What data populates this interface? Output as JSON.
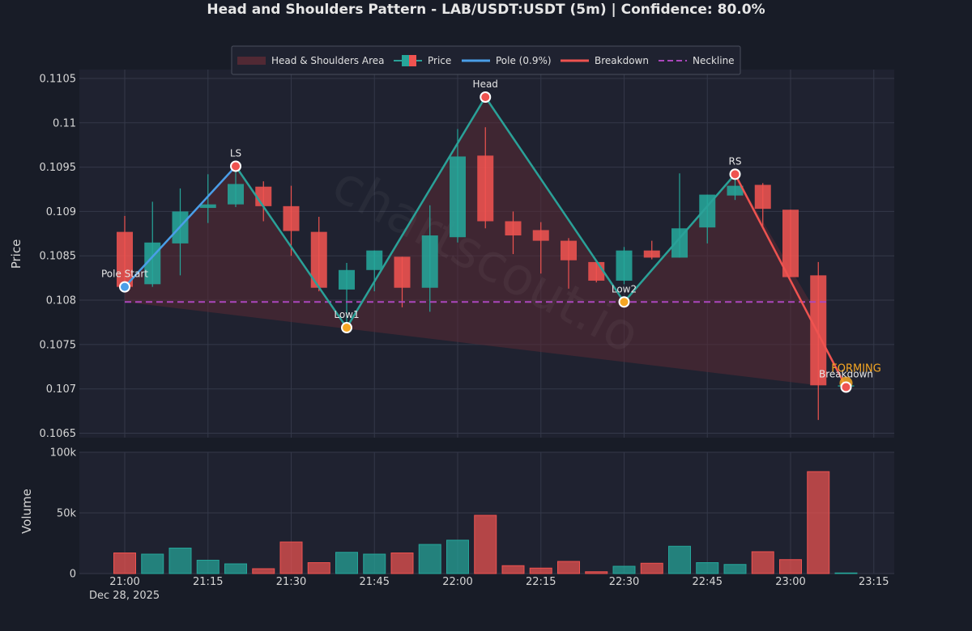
{
  "title": "Head and Shoulders Pattern - LAB/USDT:USDT (5m) | Confidence: 80.0%",
  "watermark": "chartscout.io",
  "legend": {
    "area": "Head & Shoulders Area",
    "price": "Price",
    "pole": "Pole (0.9%)",
    "breakdown": "Breakdown",
    "neckline": "Neckline"
  },
  "status_label": "FORMING",
  "colors": {
    "background": "#181c27",
    "panel": "#1f2230",
    "grid": "#343849",
    "up": "#26a69a",
    "down": "#ef5350",
    "pattern_line": "#2aa198",
    "pole": "#4a9ee8",
    "breakdown": "#ef5350",
    "neckline": "#ab47bc",
    "area": "#5a2a35",
    "low_marker": "#f5a623",
    "forming": "#f5a623"
  },
  "chart_data": {
    "type": "candlestick",
    "title": "Head and Shoulders Pattern - LAB/USDT:USDT (5m) | Confidence: 80.0%",
    "ylabel": "Price",
    "volume_ylabel": "Volume",
    "ylim": [
      0.10645,
      0.1106
    ],
    "volume_ylim": [
      0,
      100000
    ],
    "grid": true,
    "legend_position": "top-center",
    "x_start_label": "Dec 28, 2025",
    "x_ticks": [
      "21:00",
      "21:15",
      "21:30",
      "21:45",
      "22:00",
      "22:15",
      "22:30",
      "22:45",
      "23:00",
      "23:15"
    ],
    "y_ticks": [
      "0.1065",
      "0.107",
      "0.1075",
      "0.108",
      "0.1085",
      "0.109",
      "0.1095",
      "0.11",
      "0.1105"
    ],
    "volume_ticks": [
      "0",
      "50k",
      "100k"
    ],
    "candles": [
      {
        "t": "21:00",
        "o": 0.10877,
        "h": 0.10895,
        "l": 0.10812,
        "c": 0.10815,
        "v": 17000
      },
      {
        "t": "21:05",
        "o": 0.10818,
        "h": 0.10911,
        "l": 0.10815,
        "c": 0.10865,
        "v": 16000
      },
      {
        "t": "21:10",
        "o": 0.10864,
        "h": 0.10926,
        "l": 0.10828,
        "c": 0.109,
        "v": 21000
      },
      {
        "t": "21:15",
        "o": 0.10904,
        "h": 0.10942,
        "l": 0.10887,
        "c": 0.10908,
        "v": 11000
      },
      {
        "t": "21:20",
        "o": 0.10908,
        "h": 0.1095,
        "l": 0.10905,
        "c": 0.10931,
        "v": 8000
      },
      {
        "t": "21:25",
        "o": 0.10928,
        "h": 0.10934,
        "l": 0.10889,
        "c": 0.10906,
        "v": 4000
      },
      {
        "t": "21:30",
        "o": 0.10906,
        "h": 0.10929,
        "l": 0.1085,
        "c": 0.10878,
        "v": 26000
      },
      {
        "t": "21:35",
        "o": 0.10877,
        "h": 0.10894,
        "l": 0.1081,
        "c": 0.10814,
        "v": 9000
      },
      {
        "t": "21:40",
        "o": 0.10812,
        "h": 0.10842,
        "l": 0.10769,
        "c": 0.10834,
        "v": 17500
      },
      {
        "t": "21:45",
        "o": 0.10834,
        "h": 0.10856,
        "l": 0.1081,
        "c": 0.10856,
        "v": 16000
      },
      {
        "t": "21:50",
        "o": 0.10849,
        "h": 0.10849,
        "l": 0.10792,
        "c": 0.10814,
        "v": 17000
      },
      {
        "t": "21:55",
        "o": 0.10814,
        "h": 0.10907,
        "l": 0.10787,
        "c": 0.10873,
        "v": 24000
      },
      {
        "t": "22:00",
        "o": 0.10871,
        "h": 0.10993,
        "l": 0.10865,
        "c": 0.10962,
        "v": 27500
      },
      {
        "t": "22:05",
        "o": 0.10963,
        "h": 0.10995,
        "l": 0.10881,
        "c": 0.10889,
        "v": 48000
      },
      {
        "t": "22:10",
        "o": 0.10889,
        "h": 0.109,
        "l": 0.10852,
        "c": 0.10873,
        "v": 6500
      },
      {
        "t": "22:15",
        "o": 0.10879,
        "h": 0.10888,
        "l": 0.1083,
        "c": 0.10867,
        "v": 4500
      },
      {
        "t": "22:20",
        "o": 0.10867,
        "h": 0.1087,
        "l": 0.10813,
        "c": 0.10845,
        "v": 10000
      },
      {
        "t": "22:25",
        "o": 0.10843,
        "h": 0.10844,
        "l": 0.1082,
        "c": 0.10822,
        "v": 1500
      },
      {
        "t": "22:30",
        "o": 0.10822,
        "h": 0.1086,
        "l": 0.10818,
        "c": 0.10856,
        "v": 6000
      },
      {
        "t": "22:35",
        "o": 0.10856,
        "h": 0.10867,
        "l": 0.10846,
        "c": 0.10848,
        "v": 8500
      },
      {
        "t": "22:40",
        "o": 0.10848,
        "h": 0.10943,
        "l": 0.10848,
        "c": 0.10881,
        "v": 22500
      },
      {
        "t": "22:45",
        "o": 0.10882,
        "h": 0.10919,
        "l": 0.10864,
        "c": 0.10919,
        "v": 9000
      },
      {
        "t": "22:50",
        "o": 0.10918,
        "h": 0.10946,
        "l": 0.10913,
        "c": 0.10929,
        "v": 7500
      },
      {
        "t": "22:55",
        "o": 0.1093,
        "h": 0.10932,
        "l": 0.10883,
        "c": 0.10903,
        "v": 18000
      },
      {
        "t": "23:00",
        "o": 0.10902,
        "h": 0.10902,
        "l": 0.10826,
        "c": 0.10826,
        "v": 11500
      },
      {
        "t": "23:05",
        "o": 0.10828,
        "h": 0.10843,
        "l": 0.10665,
        "c": 0.10704,
        "v": 84000
      },
      {
        "t": "23:10",
        "o": 0.10704,
        "h": 0.10704,
        "l": 0.10704,
        "c": 0.10704,
        "v": 500
      }
    ],
    "pattern_points": [
      {
        "label": "Pole Start",
        "t": "21:00",
        "y": 0.10815
      },
      {
        "label": "LS",
        "t": "21:20",
        "y": 0.10951
      },
      {
        "label": "Low1",
        "t": "21:40",
        "y": 0.10769
      },
      {
        "label": "Head",
        "t": "22:05",
        "y": 0.11029
      },
      {
        "label": "Low2",
        "t": "22:30",
        "y": 0.10798
      },
      {
        "label": "RS",
        "t": "22:50",
        "y": 0.10942
      },
      {
        "label": "Breakdown",
        "t": "23:10",
        "y": 0.10702
      }
    ],
    "pole": {
      "name": "Pole (0.9%)",
      "from": "21:00",
      "to": "21:20"
    },
    "breakdown": {
      "name": "Breakdown",
      "from": "22:50",
      "to": "23:10"
    },
    "neckline": {
      "name": "Neckline",
      "y": 0.10798,
      "from": "21:00",
      "to": "23:05"
    },
    "area": {
      "name": "Head & Shoulders Area",
      "from": "21:00",
      "to": "23:05",
      "base": 0.10798
    },
    "status": "FORMING"
  }
}
